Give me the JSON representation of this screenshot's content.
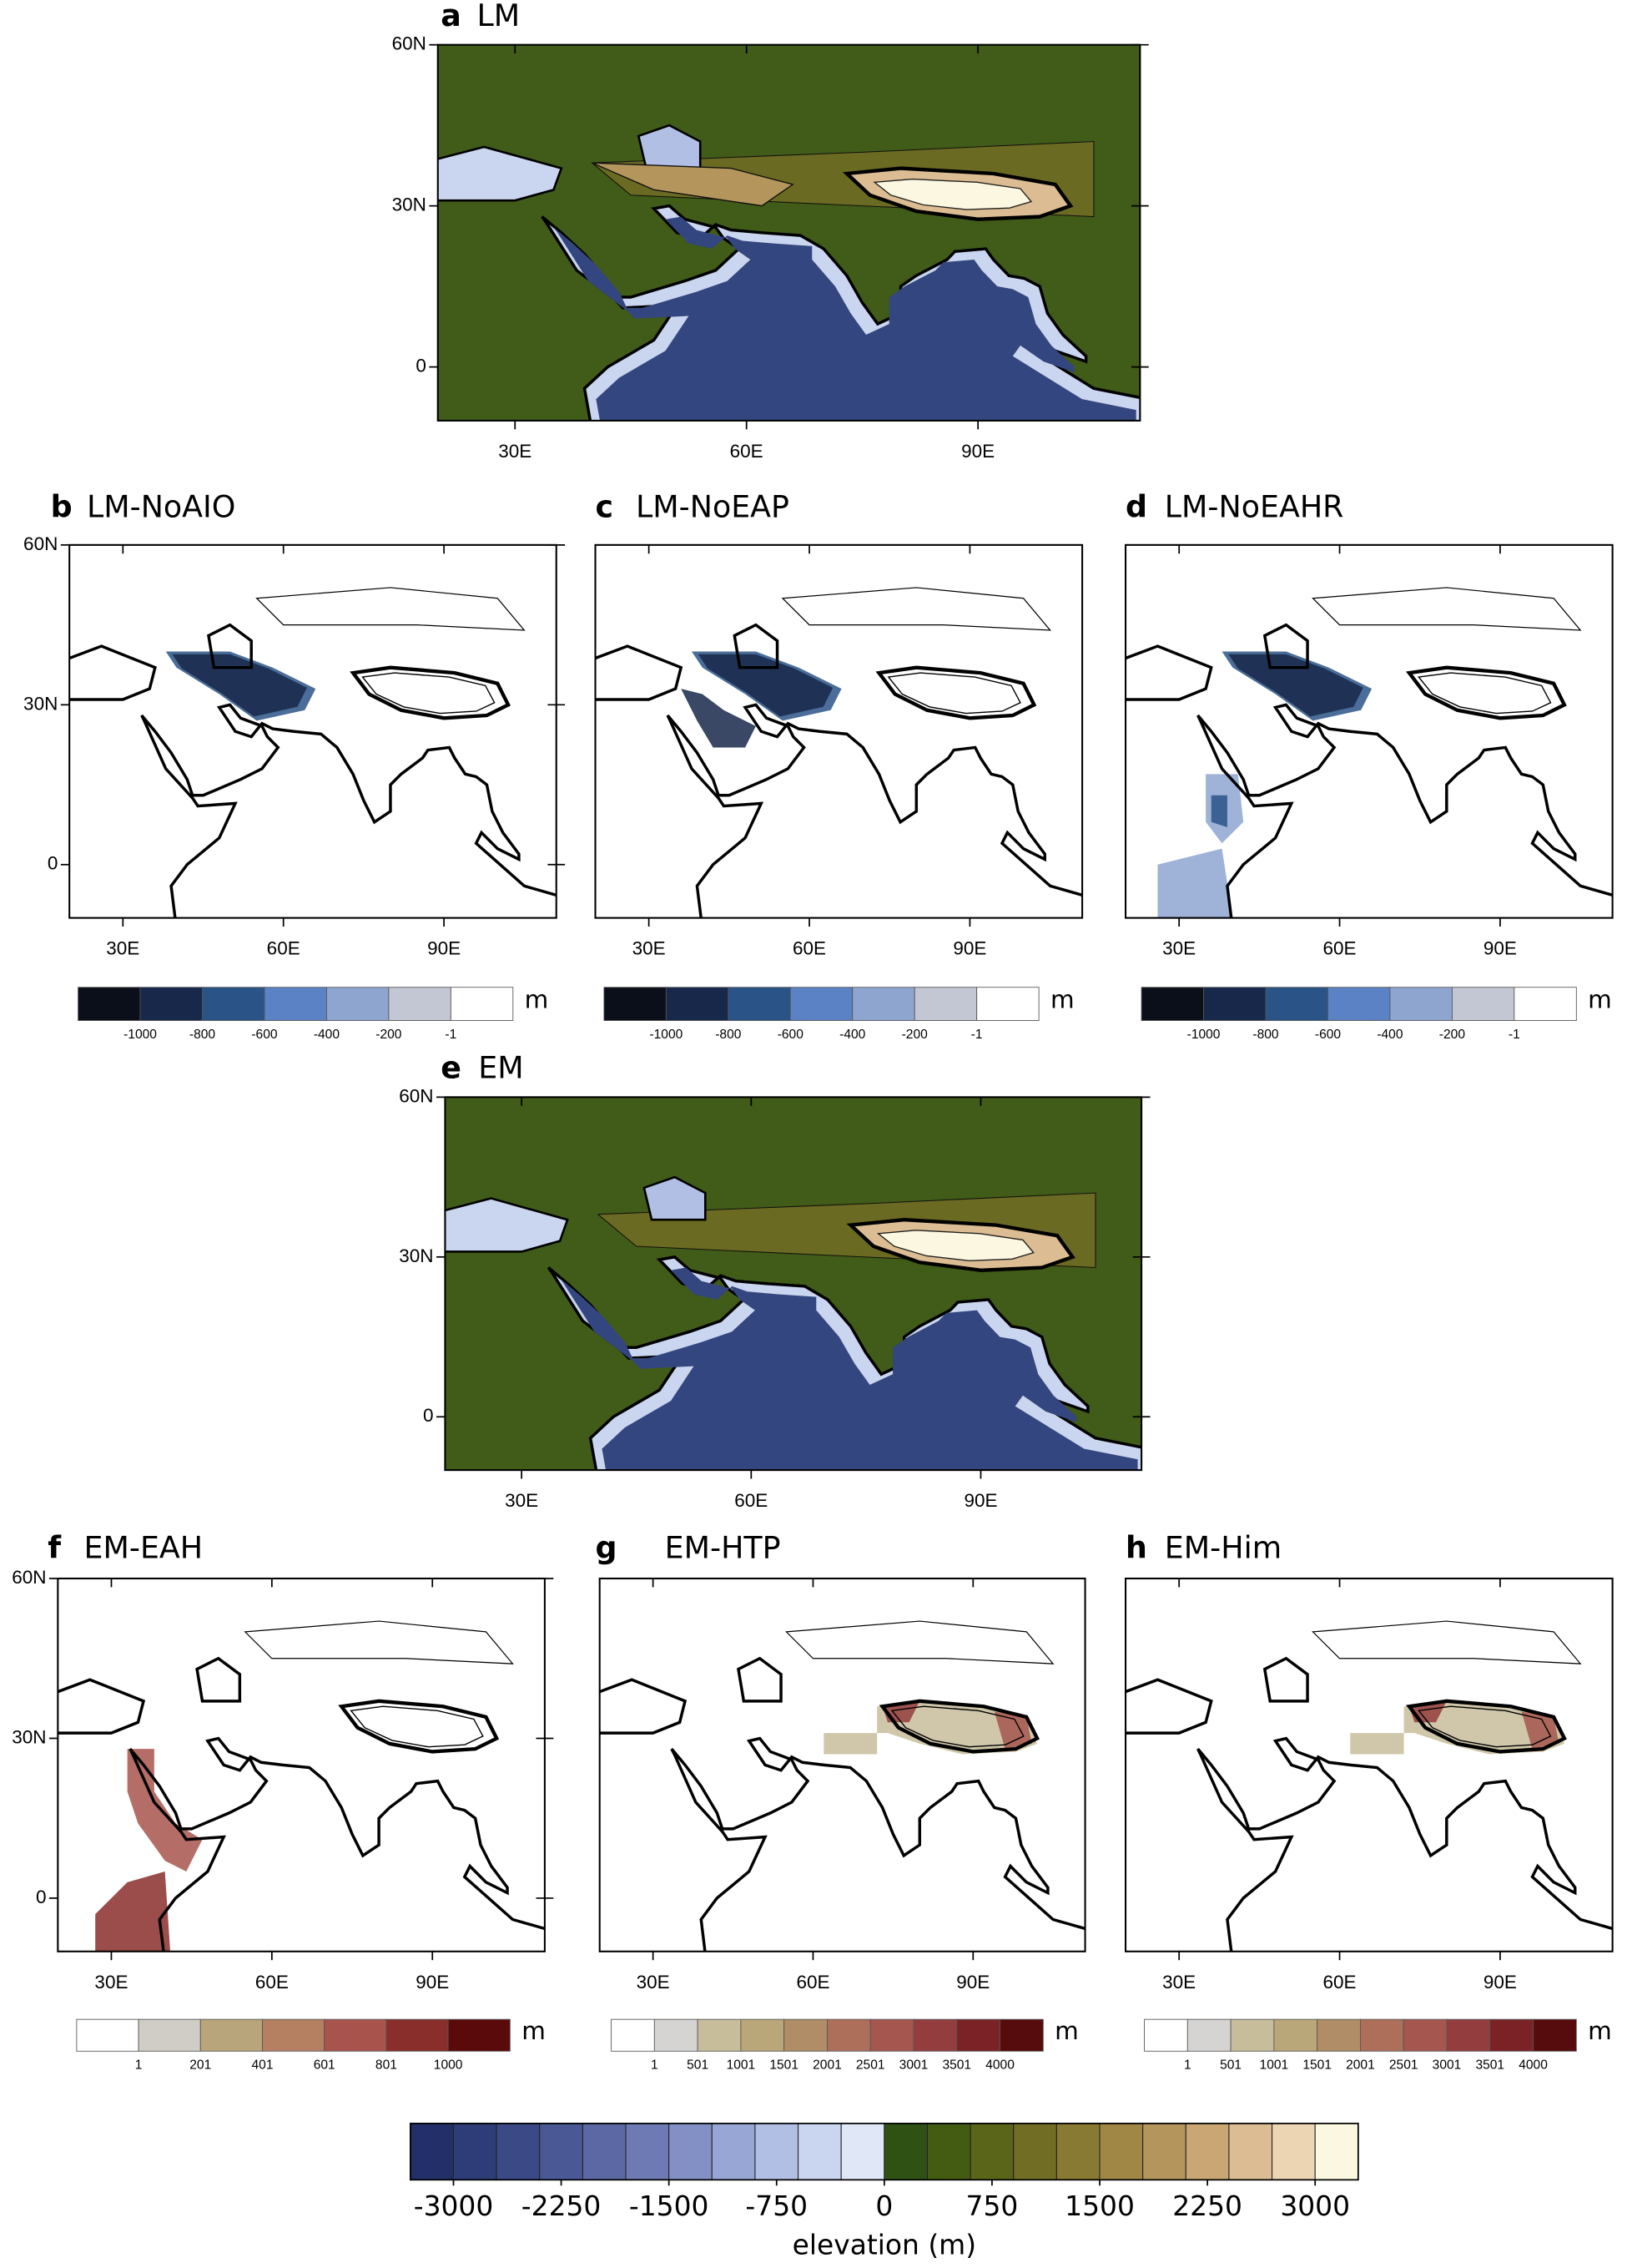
{
  "panels": [
    {
      "letter": "a",
      "title": "LM",
      "xlim": [
        20,
        111
      ],
      "ylim": [
        -10,
        60
      ],
      "xticks": [
        {
          "value": 30,
          "label": "30E"
        },
        {
          "value": 60,
          "label": "60E"
        },
        {
          "value": 90,
          "label": "90E"
        }
      ],
      "yticks": [
        {
          "value": 60,
          "label": "60N"
        },
        {
          "value": 30,
          "label": "30N"
        },
        0
      ]
    },
    {
      "letter": "b",
      "title": "LM-NoAIO",
      "xlim": [
        20,
        111
      ],
      "ylim": [
        -10,
        60
      ],
      "xticks": [
        {
          "value": 30,
          "label": "30E"
        },
        {
          "value": 60,
          "label": "60E"
        },
        {
          "value": 90,
          "label": "90E"
        }
      ],
      "yticks": [
        {
          "value": 60,
          "label": "60N"
        },
        {
          "value": 30,
          "label": "30N"
        },
        0
      ],
      "colorbar": {
        "labels": [
          -1000,
          -800,
          -600,
          -400,
          -200,
          -1
        ],
        "unit": "m",
        "colors": [
          "#0b0f1a",
          "#17284a",
          "#2a5487",
          "#5b82c4",
          "#8ea5d0",
          "#c3c6d3",
          "#ffffff"
        ]
      }
    },
    {
      "letter": "c",
      "title": "LM-NoEAP",
      "xlim": [
        20,
        111
      ],
      "ylim": [
        -10,
        60
      ],
      "xticks": [
        {
          "value": 30,
          "label": "30E"
        },
        {
          "value": 60,
          "label": "60E"
        },
        {
          "value": 90,
          "label": "90E"
        }
      ],
      "colorbar": {
        "labels": [
          -1000,
          -800,
          -600,
          -400,
          -200,
          -1
        ],
        "unit": "m",
        "colors": [
          "#0b0f1a",
          "#17284a",
          "#2a5487",
          "#5b82c4",
          "#8ea5d0",
          "#c3c6d3",
          "#ffffff"
        ]
      }
    },
    {
      "letter": "d",
      "title": "LM-NoEAHR",
      "xlim": [
        20,
        111
      ],
      "ylim": [
        -10,
        60
      ],
      "xticks": [
        {
          "value": 30,
          "label": "30E"
        },
        {
          "value": 60,
          "label": "60E"
        },
        {
          "value": 90,
          "label": "90E"
        }
      ],
      "colorbar": {
        "labels": [
          -1000,
          -800,
          -600,
          -400,
          -200,
          -1
        ],
        "unit": "m",
        "colors": [
          "#0b0f1a",
          "#17284a",
          "#2a5487",
          "#5b82c4",
          "#8ea5d0",
          "#c3c6d3",
          "#ffffff"
        ]
      }
    },
    {
      "letter": "e",
      "title": "EM",
      "xlim": [
        20,
        111
      ],
      "ylim": [
        -10,
        60
      ],
      "xticks": [
        {
          "value": 30,
          "label": "30E"
        },
        {
          "value": 60,
          "label": "60E"
        },
        {
          "value": 90,
          "label": "90E"
        }
      ],
      "yticks": [
        {
          "value": 60,
          "label": "60N"
        },
        {
          "value": 30,
          "label": "30N"
        },
        0
      ]
    },
    {
      "letter": "f",
      "title": "EM-EAH",
      "xlim": [
        20,
        111
      ],
      "ylim": [
        -10,
        60
      ],
      "xticks": [
        {
          "value": 30,
          "label": "30E"
        },
        {
          "value": 60,
          "label": "60E"
        },
        {
          "value": 90,
          "label": "90E"
        }
      ],
      "yticks": [
        {
          "value": 60,
          "label": "60N"
        },
        {
          "value": 30,
          "label": "30N"
        },
        0
      ],
      "colorbar": {
        "labels": [
          1,
          201,
          401,
          601,
          801,
          1000
        ],
        "unit": "m",
        "colors": [
          "#ffffff",
          "#d0cdc6",
          "#b8a57c",
          "#b57f62",
          "#a8544c",
          "#8a2e2c",
          "#5a0a0a"
        ]
      }
    },
    {
      "letter": "g",
      "title": "EM-HTP",
      "xlim": [
        20,
        111
      ],
      "ylim": [
        -10,
        60
      ],
      "xticks": [
        {
          "value": 30,
          "label": "30E"
        },
        {
          "value": 60,
          "label": "60E"
        },
        {
          "value": 90,
          "label": "90E"
        }
      ],
      "colorbar": {
        "labels": [
          1,
          501,
          1001,
          1501,
          2001,
          2501,
          3001,
          3501,
          4000
        ],
        "unit": "m",
        "colors": [
          "#ffffff",
          "#d6d4d2",
          "#c8bd9b",
          "#b9a77a",
          "#b08d66",
          "#ad6f5a",
          "#a5564f",
          "#943d3e",
          "#7a2226",
          "#560b0c"
        ]
      }
    },
    {
      "letter": "h",
      "title": "EM-Him",
      "xlim": [
        20,
        111
      ],
      "ylim": [
        -10,
        60
      ],
      "xticks": [
        {
          "value": 30,
          "label": "30E"
        },
        {
          "value": 60,
          "label": "60E"
        },
        {
          "value": 90,
          "label": "90E"
        }
      ],
      "colorbar": {
        "labels": [
          1,
          501,
          1001,
          1501,
          2001,
          2501,
          3001,
          3501,
          4000
        ],
        "unit": "m",
        "colors": [
          "#ffffff",
          "#d6d4d2",
          "#c8bd9b",
          "#b9a77a",
          "#b08d66",
          "#ad6f5a",
          "#a5564f",
          "#943d3e",
          "#7a2226",
          "#560b0c"
        ]
      }
    }
  ],
  "colorbar": {
    "title": "elevation (m)",
    "lim": [
      -3300,
      3300
    ],
    "ticks": [
      -3000,
      -2250,
      -1500,
      -750,
      0,
      750,
      1500,
      2250,
      3000
    ],
    "colors": [
      "#232f68",
      "#2e3c78",
      "#3b4a87",
      "#4a5996",
      "#5b68a4",
      "#6e7ab3",
      "#8290c5",
      "#98a6d6",
      "#b2bfe4",
      "#cad5ef",
      "#e0e8f7",
      "#2f5214",
      "#435c12",
      "#5a651a",
      "#716d24",
      "#887a32",
      "#a08745",
      "#b4965c",
      "#c9a674",
      "#dcbc92",
      "#ecd5b3",
      "#fbf7e0"
    ]
  }
}
